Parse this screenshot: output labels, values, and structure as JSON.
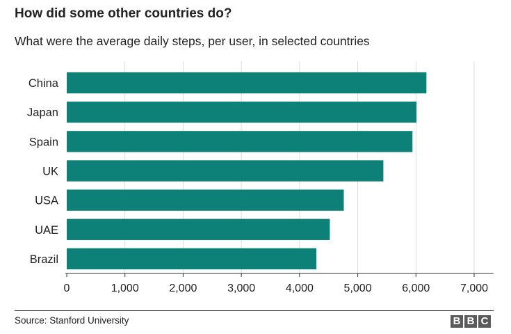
{
  "title": "How did some other countries do?",
  "subtitle": "What were the average daily steps, per user, in selected countries",
  "source": "Source: Stanford University",
  "logo": {
    "letters": [
      "B",
      "B",
      "C"
    ],
    "color": "#5b5b5b"
  },
  "colors": {
    "bar": "#0d8078",
    "grid": "#dddddd",
    "axis": "#333333"
  },
  "chart_data": {
    "type": "bar",
    "orientation": "horizontal",
    "categories": [
      "China",
      "Japan",
      "Spain",
      "UK",
      "USA",
      "UAE",
      "Brazil"
    ],
    "values": [
      6180,
      6010,
      5940,
      5440,
      4760,
      4520,
      4290
    ],
    "xlim": [
      0,
      7000
    ],
    "xticks": [
      0,
      1000,
      2000,
      3000,
      4000,
      5000,
      6000,
      7000
    ],
    "xtick_labels": [
      "0",
      "1,000",
      "2,000",
      "3,000",
      "4,000",
      "5,000",
      "6,000",
      "7,000"
    ],
    "grid": true,
    "legend": false
  }
}
